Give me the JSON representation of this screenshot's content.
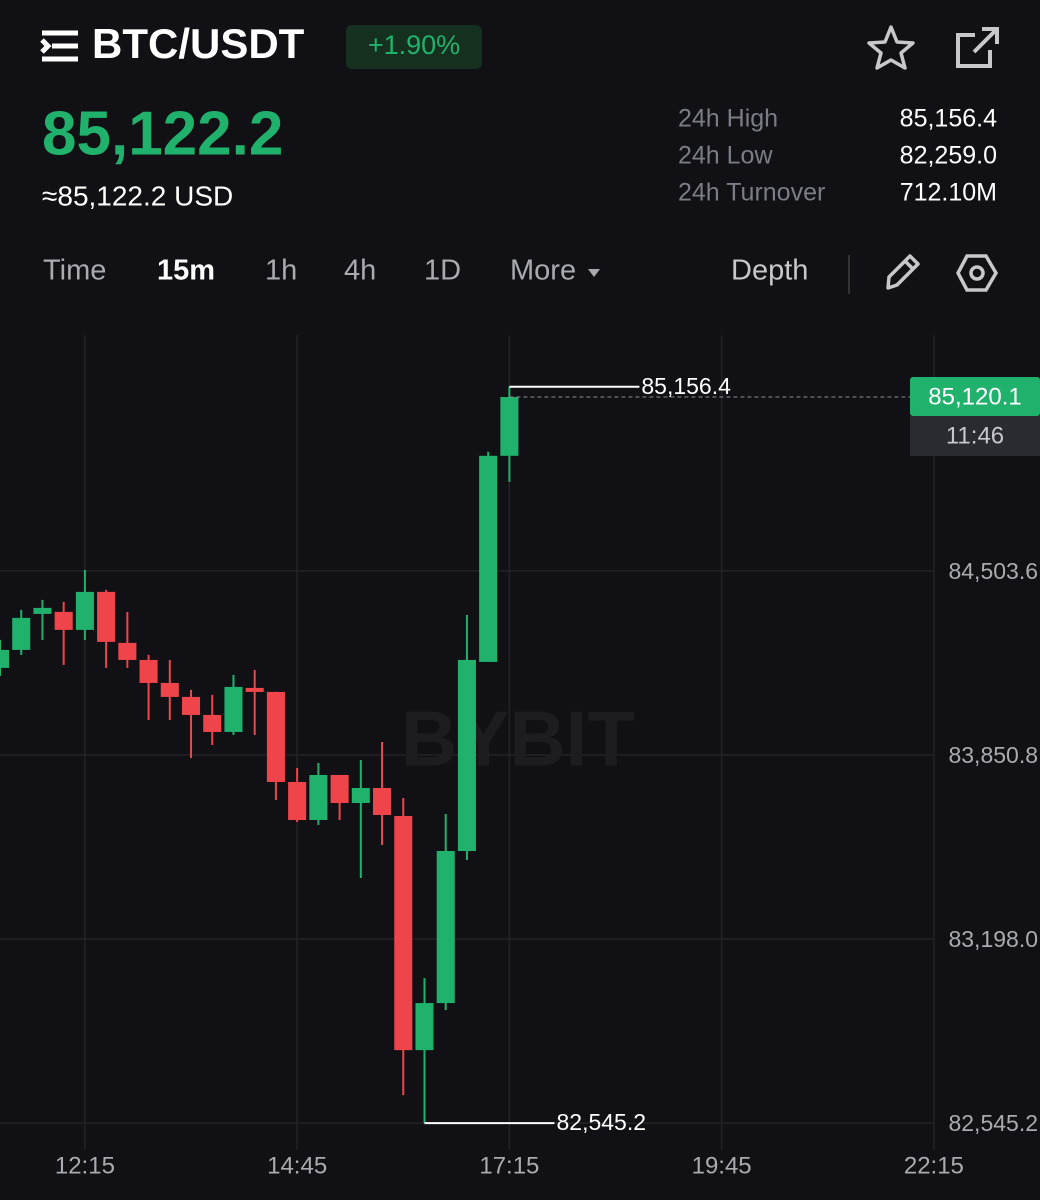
{
  "header": {
    "symbol": "BTC/USDT",
    "change": "+1.90%",
    "price": "85,122.2",
    "price_usd": "≈85,122.2 USD",
    "stats": [
      {
        "label": "24h High",
        "value": "85,156.4"
      },
      {
        "label": "24h Low",
        "value": "82,259.0"
      },
      {
        "label": "24h Turnover",
        "value": "712.10M"
      }
    ]
  },
  "tabs": {
    "items": [
      "Time",
      "15m",
      "1h",
      "4h",
      "1D",
      "More"
    ],
    "active": "15m",
    "depth": "Depth"
  },
  "chart_data": {
    "type": "candlestick",
    "watermark": "BYBIT",
    "x": [
      "11:15",
      "11:30",
      "11:45",
      "12:00",
      "12:15",
      "12:30",
      "12:45",
      "13:00",
      "13:15",
      "13:30",
      "13:45",
      "14:00",
      "14:15",
      "14:30",
      "14:45",
      "15:00",
      "15:15",
      "15:30",
      "15:45",
      "16:00",
      "16:15",
      "16:30",
      "16:45",
      "17:00",
      "17:15"
    ],
    "open": [
      84159.5,
      84223.3,
      84351.0,
      84358.1,
      84294.3,
      84429.1,
      84248.2,
      84187.8,
      84106.2,
      84056.6,
      83992.7,
      83932.4,
      84088.5,
      84074.3,
      83755.0,
      83620.2,
      83779.8,
      83680.5,
      83733.7,
      83634.4,
      82804.2,
      82971.0,
      83510.2,
      84180.7,
      84911.6
    ],
    "high": [
      84258.8,
      84365.2,
      84400.7,
      84393.6,
      84507.1,
      84436.2,
      84358.1,
      84205.6,
      84187.8,
      84081.4,
      84063.7,
      84134.6,
      84152.4,
      84074.3,
      83804.7,
      83822.4,
      83779.8,
      83833.1,
      83896.9,
      83698.2,
      83059.6,
      83641.5,
      84347.5,
      84925.8,
      85156.4
    ],
    "low": [
      84131.1,
      84205.6,
      84258.8,
      84170.1,
      84258.8,
      84159.5,
      84159.5,
      83975.0,
      83975.0,
      83840.2,
      83886.3,
      83921.8,
      83921.8,
      83691.2,
      83613.1,
      83602.5,
      83620.2,
      83414.4,
      83531.5,
      82644.6,
      82545.2,
      82946.1,
      83478.3,
      84180.7,
      84819.4
    ],
    "close": [
      84223.3,
      84336.9,
      84372.3,
      84294.3,
      84429.1,
      84251.7,
      84187.8,
      84106.2,
      84056.6,
      83992.7,
      83932.4,
      84092.1,
      84074.3,
      83755.0,
      83620.2,
      83779.8,
      83680.5,
      83733.7,
      83637.9,
      82804.2,
      82971.0,
      83510.2,
      84187.8,
      84911.6,
      85120.1
    ],
    "up_color": "#20b26c",
    "down_color": "#ef454a",
    "xlim": [
      "11:15",
      "23:30"
    ],
    "xticks": [
      "12:15",
      "14:45",
      "17:15",
      "19:45",
      "22:15"
    ],
    "ylim": [
      82450,
      85340
    ],
    "yticks": [
      {
        "value": 82545.2,
        "label": "82,545.2"
      },
      {
        "value": 83198.0,
        "label": "83,198.0"
      },
      {
        "value": 83850.8,
        "label": "83,850.8"
      },
      {
        "value": 84503.6,
        "label": "84,503.6"
      }
    ],
    "grid": true,
    "high_marker": {
      "value": 85156.4,
      "label": "85,156.4"
    },
    "low_marker": {
      "value": 82545.2,
      "label": "82,545.2"
    },
    "last_price": {
      "value": 85120.1,
      "label": "85,120.1"
    },
    "countdown": "11:46"
  }
}
